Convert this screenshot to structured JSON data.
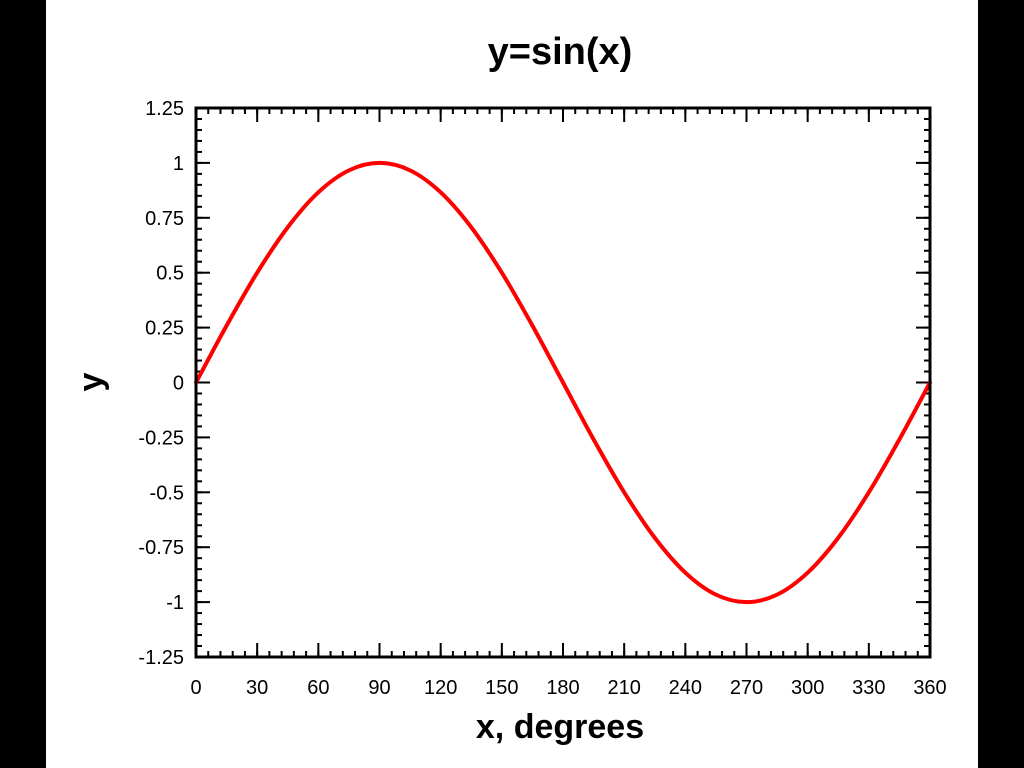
{
  "chart_data": {
    "type": "line",
    "title": "y=sin(x)",
    "xlabel": "x, degrees",
    "ylabel": "y",
    "xlim": [
      0,
      360
    ],
    "ylim": [
      -1.25,
      1.25
    ],
    "x_ticks": [
      0,
      30,
      60,
      90,
      120,
      150,
      180,
      210,
      240,
      270,
      300,
      330,
      360
    ],
    "x_tick_labels": [
      "0",
      "30",
      "60",
      "90",
      "120",
      "150",
      "180",
      "210",
      "240",
      "270",
      "300",
      "330",
      "360"
    ],
    "y_ticks": [
      1.25,
      1,
      0.75,
      0.5,
      0.25,
      0,
      -0.25,
      -0.5,
      -0.75,
      -1,
      -1.25
    ],
    "y_tick_labels": [
      "1.25",
      "1",
      "0.75",
      "0.5",
      "0.25",
      "0",
      "-0.25",
      "-0.5",
      "-0.75",
      "-1",
      "-1.25"
    ],
    "grid": false,
    "series": [
      {
        "color": "#ff0000",
        "x": [
          0,
          15,
          30,
          45,
          60,
          75,
          90,
          105,
          120,
          135,
          150,
          165,
          180,
          195,
          210,
          225,
          240,
          255,
          270,
          285,
          300,
          315,
          330,
          345,
          360
        ],
        "y": [
          0,
          0.259,
          0.5,
          0.707,
          0.866,
          0.966,
          1,
          0.966,
          0.866,
          0.707,
          0.5,
          0.259,
          0,
          -0.259,
          -0.5,
          -0.707,
          -0.866,
          -0.966,
          -1,
          -0.966,
          -0.866,
          -0.707,
          -0.5,
          -0.259,
          0
        ]
      }
    ]
  }
}
